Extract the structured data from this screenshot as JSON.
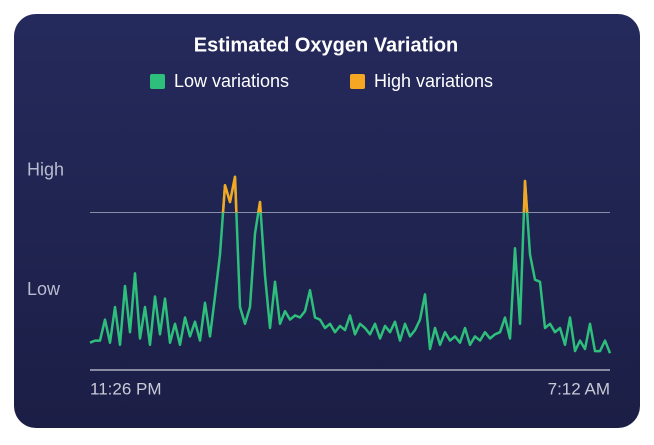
{
  "chart_data": {
    "type": "line",
    "title": "Estimated Oxygen Variation",
    "legend": [
      {
        "name": "Low variations",
        "color": "#2ebf7c"
      },
      {
        "name": "High variations",
        "color": "#f5a623"
      }
    ],
    "values": [
      13,
      14,
      14,
      24,
      13,
      30,
      12,
      40,
      18,
      46,
      15,
      30,
      12,
      35,
      17,
      34,
      13,
      22,
      12,
      25,
      16,
      23,
      14,
      32,
      16,
      35,
      55,
      88,
      80,
      92,
      30,
      22,
      30,
      65,
      80,
      45,
      20,
      42,
      22,
      28,
      24,
      26,
      25,
      28,
      38,
      25,
      24,
      20,
      22,
      18,
      21,
      19,
      26,
      17,
      22,
      20,
      17,
      22,
      15,
      21,
      18,
      23,
      14,
      22,
      16,
      19,
      24,
      36,
      10,
      20,
      12,
      18,
      14,
      16,
      13,
      20,
      12,
      16,
      14,
      18,
      15,
      17,
      18,
      25,
      15,
      58,
      22,
      90,
      55,
      43,
      42,
      20,
      22,
      18,
      20,
      12,
      25,
      9,
      14,
      10,
      22,
      9,
      9,
      14,
      8
    ],
    "threshold": 75,
    "ylim": [
      0,
      100
    ],
    "yticks": [
      {
        "value": 95,
        "label": "High"
      },
      {
        "value": 38,
        "label": "Low"
      }
    ],
    "x_labels": [
      "11:26 PM",
      "7:12 AM"
    ]
  }
}
